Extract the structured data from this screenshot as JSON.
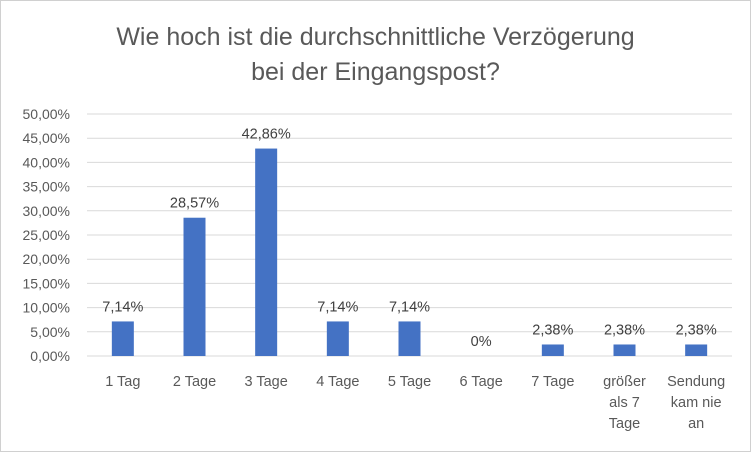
{
  "chart_data": {
    "type": "bar",
    "title_lines": [
      "Wie hoch ist die durchschnittliche Verzögerung",
      "bei der Eingangspost?"
    ],
    "categories": [
      "1 Tag",
      "2 Tage",
      "3 Tage",
      "4 Tage",
      "5 Tage",
      "6 Tage",
      "7 Tage",
      "größer als 7 Tage",
      "Sendung kam nie an"
    ],
    "category_lines": [
      [
        "1 Tag"
      ],
      [
        "2 Tage"
      ],
      [
        "3 Tage"
      ],
      [
        "4 Tage"
      ],
      [
        "5 Tage"
      ],
      [
        "6 Tage"
      ],
      [
        "7 Tage"
      ],
      [
        "größer",
        "als 7",
        "Tage"
      ],
      [
        "Sendung",
        "kam nie",
        "an"
      ]
    ],
    "values": [
      7.14,
      28.57,
      42.86,
      7.14,
      7.14,
      0,
      2.38,
      2.38,
      2.38
    ],
    "data_labels": [
      "7,14%",
      "28,57%",
      "42,86%",
      "7,14%",
      "7,14%",
      "0%",
      "2,38%",
      "2,38%",
      "2,38%"
    ],
    "ylim": [
      0,
      50
    ],
    "yticks": [
      0,
      5,
      10,
      15,
      20,
      25,
      30,
      35,
      40,
      45,
      50
    ],
    "ytick_labels": [
      "0,00%",
      "5,00%",
      "10,00%",
      "15,00%",
      "20,00%",
      "25,00%",
      "30,00%",
      "35,00%",
      "40,00%",
      "45,00%",
      "50,00%"
    ],
    "grid": true,
    "legend": "none",
    "colors": {
      "bar": "#4472C4",
      "grid": "#d9d9d9",
      "text": "#595959"
    }
  }
}
